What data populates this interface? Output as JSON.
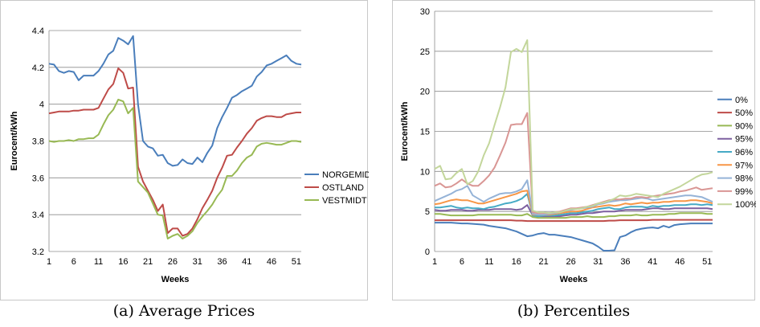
{
  "captions": {
    "a": "(a) Average Prices",
    "b": "(b) Percentiles"
  },
  "chart_data": [
    {
      "type": "line",
      "ylabel": "Eurocent/kWh",
      "xlabel": "Weeks",
      "xlim": [
        1,
        52
      ],
      "ylim": [
        3.2,
        4.4
      ],
      "yticks": [
        "3.2",
        "3.4",
        "3.6",
        "3.8",
        "4",
        "4.2",
        "4.4"
      ],
      "ytick_values": [
        3.2,
        3.4,
        3.6,
        3.8,
        4.0,
        4.2,
        4.4
      ],
      "xticks": [
        "1",
        "6",
        "11",
        "16",
        "21",
        "26",
        "31",
        "36",
        "41",
        "46",
        "51"
      ],
      "xtick_values": [
        1,
        6,
        11,
        16,
        21,
        26,
        31,
        36,
        41,
        46,
        51
      ],
      "grid": "horizontal",
      "legend": "right",
      "series": [
        {
          "name": "NORGEMIDT",
          "color": "#4a7ebb",
          "values": [
            4.22,
            4.215,
            4.18,
            4.17,
            4.18,
            4.175,
            4.13,
            4.155,
            4.155,
            4.155,
            4.18,
            4.22,
            4.27,
            4.29,
            4.36,
            4.345,
            4.325,
            4.37,
            4.0,
            3.8,
            3.77,
            3.76,
            3.72,
            3.725,
            3.68,
            3.665,
            3.67,
            3.7,
            3.68,
            3.675,
            3.71,
            3.685,
            3.735,
            3.775,
            3.87,
            3.93,
            3.98,
            4.035,
            4.05,
            4.07,
            4.085,
            4.1,
            4.15,
            4.175,
            4.21,
            4.22,
            4.235,
            4.25,
            4.265,
            4.235,
            4.22,
            4.215
          ]
        },
        {
          "name": "OSTLAND",
          "color": "#be4b48",
          "values": [
            3.95,
            3.955,
            3.96,
            3.96,
            3.96,
            3.965,
            3.965,
            3.97,
            3.97,
            3.97,
            3.98,
            4.03,
            4.08,
            4.11,
            4.195,
            4.17,
            4.085,
            4.09,
            3.66,
            3.58,
            3.53,
            3.48,
            3.42,
            3.455,
            3.3,
            3.325,
            3.325,
            3.285,
            3.295,
            3.325,
            3.375,
            3.435,
            3.48,
            3.53,
            3.6,
            3.655,
            3.72,
            3.725,
            3.765,
            3.8,
            3.84,
            3.87,
            3.91,
            3.925,
            3.935,
            3.935,
            3.93,
            3.93,
            3.945,
            3.95,
            3.955,
            3.955
          ]
        },
        {
          "name": "VESTMIDT",
          "color": "#98b954",
          "values": [
            3.8,
            3.795,
            3.8,
            3.8,
            3.805,
            3.8,
            3.81,
            3.81,
            3.815,
            3.815,
            3.835,
            3.89,
            3.94,
            3.97,
            4.025,
            4.015,
            3.95,
            3.98,
            3.58,
            3.55,
            3.52,
            3.46,
            3.4,
            3.395,
            3.27,
            3.285,
            3.295,
            3.27,
            3.285,
            3.31,
            3.355,
            3.39,
            3.42,
            3.455,
            3.5,
            3.535,
            3.61,
            3.61,
            3.64,
            3.68,
            3.71,
            3.725,
            3.77,
            3.785,
            3.79,
            3.785,
            3.78,
            3.78,
            3.79,
            3.8,
            3.8,
            3.795
          ]
        }
      ]
    },
    {
      "type": "line",
      "ylabel": "Eurocent/kWh",
      "xlabel": "Weeks",
      "xlim": [
        1,
        52
      ],
      "ylim": [
        0,
        30
      ],
      "yticks": [
        "0",
        "5",
        "10",
        "15",
        "20",
        "25",
        "30"
      ],
      "ytick_values": [
        0,
        5,
        10,
        15,
        20,
        25,
        30
      ],
      "xticks": [
        "1",
        "6",
        "11",
        "16",
        "21",
        "26",
        "31",
        "36",
        "41",
        "46",
        "51"
      ],
      "xtick_values": [
        1,
        6,
        11,
        16,
        21,
        26,
        31,
        36,
        41,
        46,
        51
      ],
      "grid": "horizontal",
      "legend": "right",
      "series": [
        {
          "name": "0%",
          "color": "#4a7ebb",
          "values": [
            3.6,
            3.6,
            3.6,
            3.6,
            3.55,
            3.5,
            3.5,
            3.45,
            3.4,
            3.35,
            3.2,
            3.1,
            3.0,
            2.9,
            2.7,
            2.5,
            2.2,
            1.9,
            2.0,
            2.2,
            2.3,
            2.1,
            2.1,
            2.0,
            1.9,
            1.8,
            1.6,
            1.4,
            1.2,
            1.0,
            0.6,
            0.1,
            0.1,
            0.15,
            1.8,
            2.0,
            2.4,
            2.7,
            2.85,
            2.95,
            3.0,
            2.9,
            3.2,
            3.0,
            3.3,
            3.4,
            3.45,
            3.5,
            3.5,
            3.5,
            3.5,
            3.5
          ]
        },
        {
          "name": "50%",
          "color": "#be4b48",
          "values": [
            3.9,
            3.9,
            3.9,
            3.9,
            3.9,
            3.9,
            3.9,
            3.9,
            3.9,
            3.9,
            3.9,
            3.9,
            3.9,
            3.9,
            3.9,
            3.85,
            3.85,
            3.8,
            3.8,
            3.8,
            3.8,
            3.8,
            3.8,
            3.8,
            3.8,
            3.8,
            3.8,
            3.8,
            3.8,
            3.8,
            3.8,
            3.8,
            3.85,
            3.85,
            3.9,
            3.9,
            3.9,
            3.9,
            3.9,
            3.9,
            3.95,
            3.95,
            3.95,
            3.95,
            3.95,
            3.95,
            3.95,
            3.95,
            3.95,
            3.95,
            3.95,
            3.95
          ]
        },
        {
          "name": "90%",
          "color": "#98b954",
          "values": [
            4.7,
            4.7,
            4.6,
            4.5,
            4.5,
            4.5,
            4.5,
            4.5,
            4.6,
            4.6,
            4.6,
            4.6,
            4.6,
            4.6,
            4.6,
            4.5,
            4.5,
            4.7,
            4.3,
            4.2,
            4.2,
            4.2,
            4.2,
            4.2,
            4.2,
            4.3,
            4.3,
            4.3,
            4.4,
            4.3,
            4.3,
            4.3,
            4.4,
            4.4,
            4.5,
            4.5,
            4.5,
            4.6,
            4.5,
            4.5,
            4.6,
            4.6,
            4.6,
            4.7,
            4.7,
            4.8,
            4.8,
            4.8,
            4.8,
            4.8,
            4.7,
            4.7
          ]
        },
        {
          "name": "95%",
          "color": "#7d60a0",
          "values": [
            5.2,
            5.1,
            5.1,
            5.2,
            5.2,
            5.2,
            5.1,
            5.1,
            5.2,
            5.2,
            5.2,
            5.3,
            5.3,
            5.3,
            5.3,
            5.2,
            5.3,
            5.8,
            4.5,
            4.4,
            4.4,
            4.4,
            4.4,
            4.4,
            4.5,
            4.6,
            4.6,
            4.7,
            4.8,
            4.8,
            4.9,
            5.0,
            5.0,
            5.0,
            5.1,
            5.2,
            5.2,
            5.2,
            5.2,
            5.3,
            5.4,
            5.4,
            5.3,
            5.3,
            5.4,
            5.4,
            5.4,
            5.4,
            5.4,
            5.4,
            5.4,
            5.3
          ]
        },
        {
          "name": "96%",
          "color": "#46aac5",
          "values": [
            5.5,
            5.5,
            5.6,
            5.7,
            5.5,
            5.4,
            5.5,
            5.4,
            5.4,
            5.3,
            5.5,
            5.6,
            5.8,
            6.0,
            6.1,
            6.3,
            6.6,
            7.2,
            4.5,
            4.4,
            4.5,
            4.5,
            4.5,
            4.6,
            4.7,
            4.8,
            4.8,
            4.9,
            5.0,
            5.1,
            5.3,
            5.4,
            5.5,
            5.3,
            5.3,
            5.5,
            5.6,
            5.6,
            5.6,
            5.5,
            5.7,
            5.6,
            5.7,
            5.7,
            5.8,
            5.8,
            5.8,
            5.9,
            5.9,
            5.8,
            5.9,
            5.8
          ]
        },
        {
          "name": "97%",
          "color": "#f79646",
          "values": [
            5.9,
            6.0,
            6.2,
            6.4,
            6.5,
            6.4,
            6.4,
            6.2,
            6.0,
            6.0,
            6.2,
            6.4,
            6.6,
            6.8,
            7.0,
            7.2,
            7.5,
            7.6,
            4.6,
            4.6,
            4.6,
            4.6,
            4.7,
            4.8,
            4.9,
            5.0,
            5.0,
            5.1,
            5.3,
            5.5,
            5.6,
            5.7,
            5.8,
            5.7,
            5.8,
            6.0,
            5.9,
            6.0,
            6.1,
            6.0,
            6.1,
            6.1,
            6.2,
            6.2,
            6.3,
            6.3,
            6.3,
            6.4,
            6.4,
            6.3,
            6.2,
            6.0
          ]
        },
        {
          "name": "98%",
          "color": "#95b3d7",
          "values": [
            6.3,
            6.6,
            6.9,
            7.2,
            7.6,
            7.8,
            8.2,
            7.0,
            6.6,
            6.2,
            6.6,
            6.9,
            7.2,
            7.3,
            7.3,
            7.5,
            7.8,
            8.9,
            4.7,
            4.6,
            4.6,
            4.7,
            4.8,
            4.9,
            5.1,
            5.2,
            5.3,
            5.4,
            5.5,
            5.6,
            5.9,
            6.0,
            6.2,
            6.3,
            6.4,
            6.4,
            6.5,
            6.6,
            6.7,
            6.6,
            6.4,
            6.5,
            6.6,
            6.7,
            6.8,
            6.9,
            7.0,
            7.0,
            6.9,
            6.8,
            6.5,
            6.2
          ]
        },
        {
          "name": "99%",
          "color": "#d99694",
          "values": [
            8.2,
            8.5,
            8.0,
            8.1,
            8.5,
            9.0,
            8.5,
            8.2,
            8.2,
            8.8,
            9.5,
            10.5,
            12.0,
            13.6,
            15.8,
            15.9,
            15.9,
            17.3,
            4.9,
            4.8,
            4.8,
            4.8,
            4.9,
            5.0,
            5.2,
            5.4,
            5.4,
            5.5,
            5.6,
            5.8,
            6.0,
            6.2,
            6.4,
            6.5,
            6.5,
            6.6,
            6.6,
            6.8,
            6.8,
            6.7,
            6.9,
            7.0,
            7.1,
            7.2,
            7.3,
            7.5,
            7.6,
            7.8,
            8.0,
            7.7,
            7.8,
            7.9
          ]
        },
        {
          "name": "100%",
          "color": "#c3d69b",
          "values": [
            10.3,
            10.7,
            9.0,
            9.1,
            9.8,
            10.3,
            8.4,
            8.8,
            10.0,
            12.0,
            13.5,
            15.8,
            18.0,
            20.5,
            24.9,
            25.3,
            24.9,
            26.4,
            5.1,
            4.9,
            4.9,
            4.8,
            4.9,
            4.9,
            5.1,
            5.3,
            5.3,
            5.4,
            5.6,
            5.7,
            6.0,
            6.1,
            6.3,
            6.6,
            7.0,
            6.9,
            7.0,
            7.2,
            7.1,
            7.0,
            6.9,
            6.8,
            7.2,
            7.5,
            7.8,
            8.1,
            8.5,
            8.9,
            9.3,
            9.6,
            9.7,
            9.9
          ]
        }
      ]
    }
  ]
}
